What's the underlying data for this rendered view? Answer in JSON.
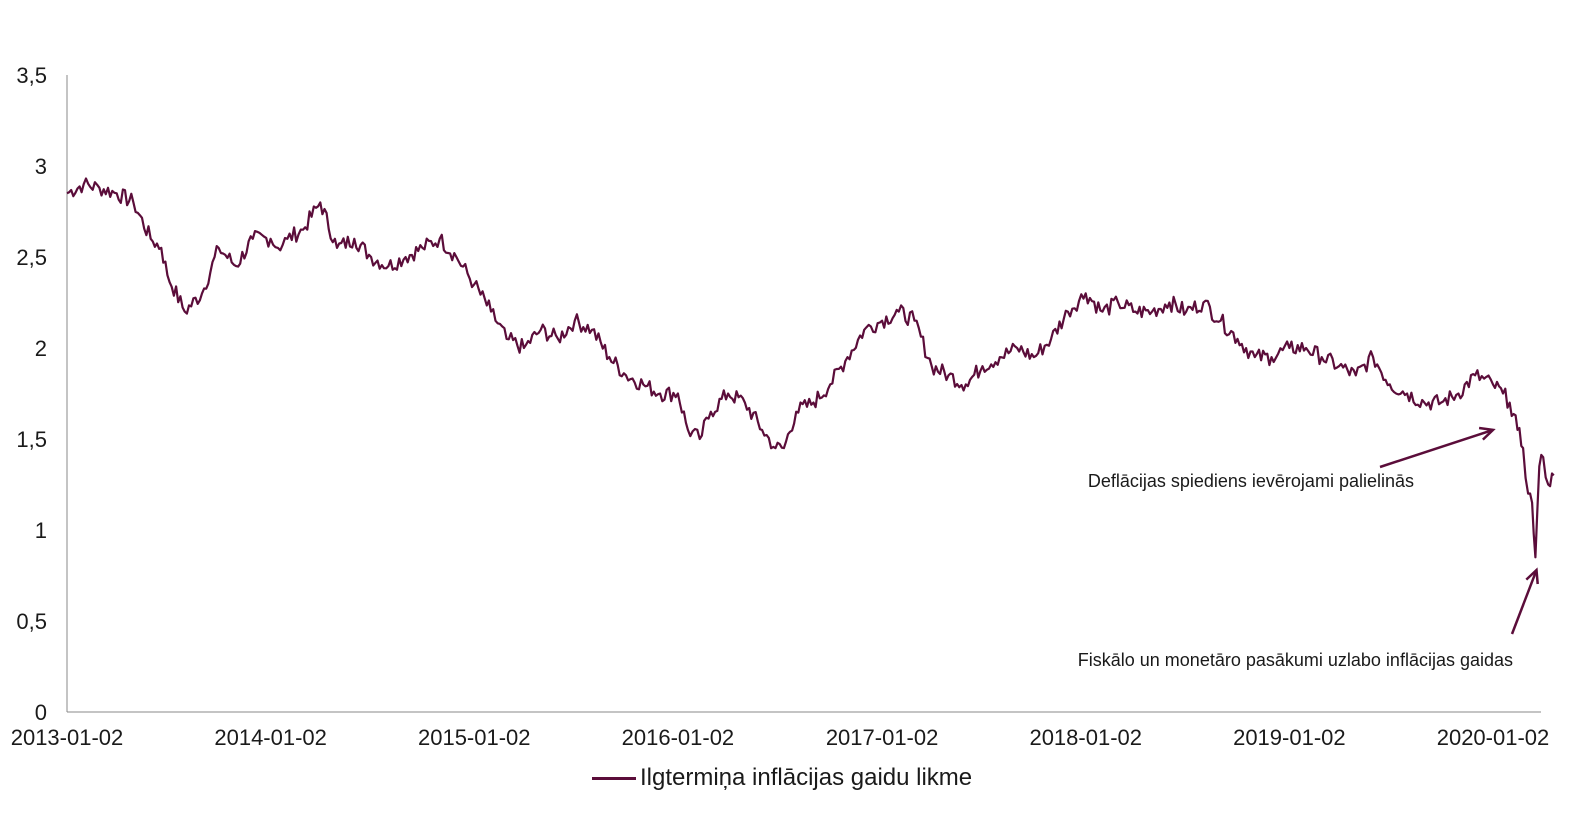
{
  "colors": {
    "series": "#5b0d3a",
    "axis": "#888888",
    "text": "#1a1a1a"
  },
  "legend": {
    "label": "Ilgtermiņa inflācijas gaidu likme"
  },
  "chart_data": {
    "type": "line",
    "title": "",
    "xlabel": "",
    "ylabel": "",
    "ylim": [
      0,
      3.5
    ],
    "xlim": [
      "2013-01-02",
      "2020-05-01"
    ],
    "grid": false,
    "legend_position": "bottom",
    "y_ticks": [
      "0",
      "0,5",
      "1",
      "1,5",
      "2",
      "2,5",
      "3",
      "3,5"
    ],
    "y_tick_values": [
      0,
      0.5,
      1,
      1.5,
      2,
      2.5,
      3,
      3.5
    ],
    "x_ticks": [
      "2013-01-02",
      "2014-01-02",
      "2015-01-02",
      "2016-01-02",
      "2017-01-02",
      "2018-01-02",
      "2019-01-02",
      "2020-01-02"
    ],
    "series": [
      {
        "name": "Ilgtermiņa inflācijas gaidu likme",
        "x": [
          "2013-01-02",
          "2013-02-01",
          "2013-03-01",
          "2013-04-01",
          "2013-05-01",
          "2013-06-01",
          "2013-06-20",
          "2013-07-01",
          "2013-08-01",
          "2013-09-01",
          "2013-10-01",
          "2013-11-01",
          "2013-12-01",
          "2014-01-02",
          "2014-01-15",
          "2014-02-01",
          "2014-03-01",
          "2014-04-01",
          "2014-05-01",
          "2014-06-01",
          "2014-07-01",
          "2014-08-01",
          "2014-09-01",
          "2014-10-01",
          "2014-11-01",
          "2014-12-01",
          "2015-01-02",
          "2015-02-01",
          "2015-03-01",
          "2015-04-01",
          "2015-05-01",
          "2015-06-01",
          "2015-07-01",
          "2015-08-01",
          "2015-09-01",
          "2015-10-01",
          "2015-11-01",
          "2015-12-01",
          "2016-01-02",
          "2016-01-20",
          "2016-02-10",
          "2016-03-01",
          "2016-04-01",
          "2016-05-01",
          "2016-06-01",
          "2016-06-25",
          "2016-07-10",
          "2016-08-01",
          "2016-09-01",
          "2016-10-01",
          "2016-11-01",
          "2016-12-01",
          "2017-01-02",
          "2017-02-01",
          "2017-03-01",
          "2017-04-01",
          "2017-05-01",
          "2017-06-01",
          "2017-07-01",
          "2017-08-01",
          "2017-09-01",
          "2017-10-01",
          "2017-11-01",
          "2017-12-01",
          "2018-01-02",
          "2018-02-01",
          "2018-03-01",
          "2018-04-01",
          "2018-05-01",
          "2018-06-01",
          "2018-07-01",
          "2018-08-01",
          "2018-09-01",
          "2018-10-01",
          "2018-11-01",
          "2018-12-01",
          "2019-01-02",
          "2019-02-01",
          "2019-03-01",
          "2019-04-01",
          "2019-05-01",
          "2019-06-01",
          "2019-07-01",
          "2019-08-01",
          "2019-09-01",
          "2019-10-01",
          "2019-11-01",
          "2019-12-01",
          "2020-01-02",
          "2020-01-20",
          "2020-02-01",
          "2020-02-15",
          "2020-02-25",
          "2020-03-05",
          "2020-03-12",
          "2020-03-18",
          "2020-03-25",
          "2020-04-01",
          "2020-04-10",
          "2020-04-20"
        ],
        "values": [
          2.85,
          2.9,
          2.88,
          2.85,
          2.8,
          2.6,
          2.55,
          2.4,
          2.2,
          2.3,
          2.55,
          2.45,
          2.6,
          2.6,
          2.55,
          2.6,
          2.65,
          2.8,
          2.55,
          2.6,
          2.5,
          2.45,
          2.5,
          2.55,
          2.6,
          2.5,
          2.35,
          2.2,
          2.05,
          2.0,
          2.1,
          2.05,
          2.15,
          2.1,
          1.95,
          1.85,
          1.8,
          1.75,
          1.75,
          1.55,
          1.5,
          1.65,
          1.75,
          1.7,
          1.55,
          1.45,
          1.45,
          1.65,
          1.7,
          1.8,
          1.95,
          2.1,
          2.15,
          2.2,
          2.15,
          1.9,
          1.85,
          1.8,
          1.9,
          1.95,
          2.0,
          1.95,
          2.05,
          2.2,
          2.3,
          2.2,
          2.25,
          2.2,
          2.2,
          2.25,
          2.2,
          2.25,
          2.15,
          2.05,
          1.95,
          1.95,
          2.0,
          2.0,
          1.95,
          1.9,
          1.85,
          1.95,
          1.8,
          1.75,
          1.7,
          1.7,
          1.75,
          1.85,
          1.8,
          1.75,
          1.7,
          1.55,
          1.45,
          1.2,
          1.15,
          0.85,
          1.35,
          1.4,
          1.25,
          1.3
        ]
      }
    ],
    "annotations": [
      {
        "text": "Deflācijas spiediens ievērojami palielinās",
        "arrow_to": [
          "2020-01-02",
          1.55
        ]
      },
      {
        "text": "Fiskālo un monetāro pasākumi uzlabo inflācijas gaidas",
        "arrow_to": [
          "2020-03-20",
          0.78
        ]
      }
    ]
  }
}
